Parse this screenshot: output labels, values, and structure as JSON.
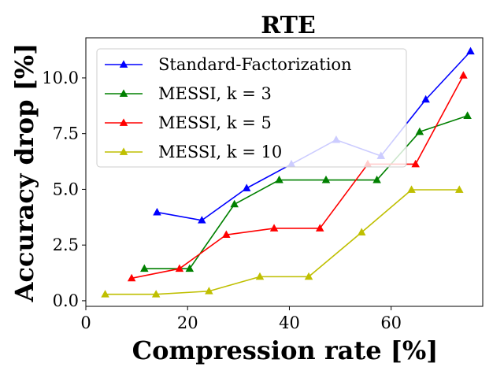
{
  "chart_data": {
    "type": "line",
    "title": "RTE",
    "xlabel": "Compression rate [%]",
    "ylabel": "Accuracy drop [%]",
    "xlim": [
      0,
      78
    ],
    "ylim": [
      -0.25,
      11.8
    ],
    "x_ticks": [
      0,
      20,
      40,
      60
    ],
    "x_tick_labels": [
      "0",
      "20",
      "40",
      "60"
    ],
    "y_ticks": [
      0.0,
      2.5,
      5.0,
      7.5,
      10.0
    ],
    "y_tick_labels": [
      "0.0",
      "2.5",
      "5.0",
      "7.5",
      "10.0"
    ],
    "legend_position": "upper-left",
    "marker": "triangle",
    "series": [
      {
        "name": "Standard-Factorization",
        "color": "#0000ff",
        "x": [
          14.0,
          22.8,
          31.6,
          40.4,
          49.2,
          58.0,
          66.8,
          75.6
        ],
        "y": [
          3.97,
          3.61,
          5.05,
          6.13,
          7.22,
          6.5,
          9.03,
          11.19
        ]
      },
      {
        "name": "MESSI, k = 3",
        "color": "#008000",
        "x": [
          11.5,
          20.4,
          29.2,
          38.0,
          47.2,
          57.2,
          65.6,
          75.0
        ],
        "y": [
          1.44,
          1.44,
          4.33,
          5.42,
          5.42,
          5.42,
          7.58,
          8.3
        ]
      },
      {
        "name": "MESSI, k = 5",
        "color": "#ff0000",
        "x": [
          9.0,
          18.4,
          27.6,
          37.0,
          46.0,
          55.4,
          64.8,
          74.2
        ],
        "y": [
          1.01,
          1.44,
          2.96,
          3.25,
          3.25,
          6.13,
          6.13,
          10.11
        ]
      },
      {
        "name": "MESSI, k = 10",
        "color": "#bfbf00",
        "x": [
          3.8,
          13.8,
          24.2,
          34.2,
          43.8,
          54.2,
          64.0,
          73.4
        ],
        "y": [
          0.29,
          0.29,
          0.43,
          1.08,
          1.08,
          3.07,
          4.98,
          4.98
        ]
      }
    ]
  }
}
